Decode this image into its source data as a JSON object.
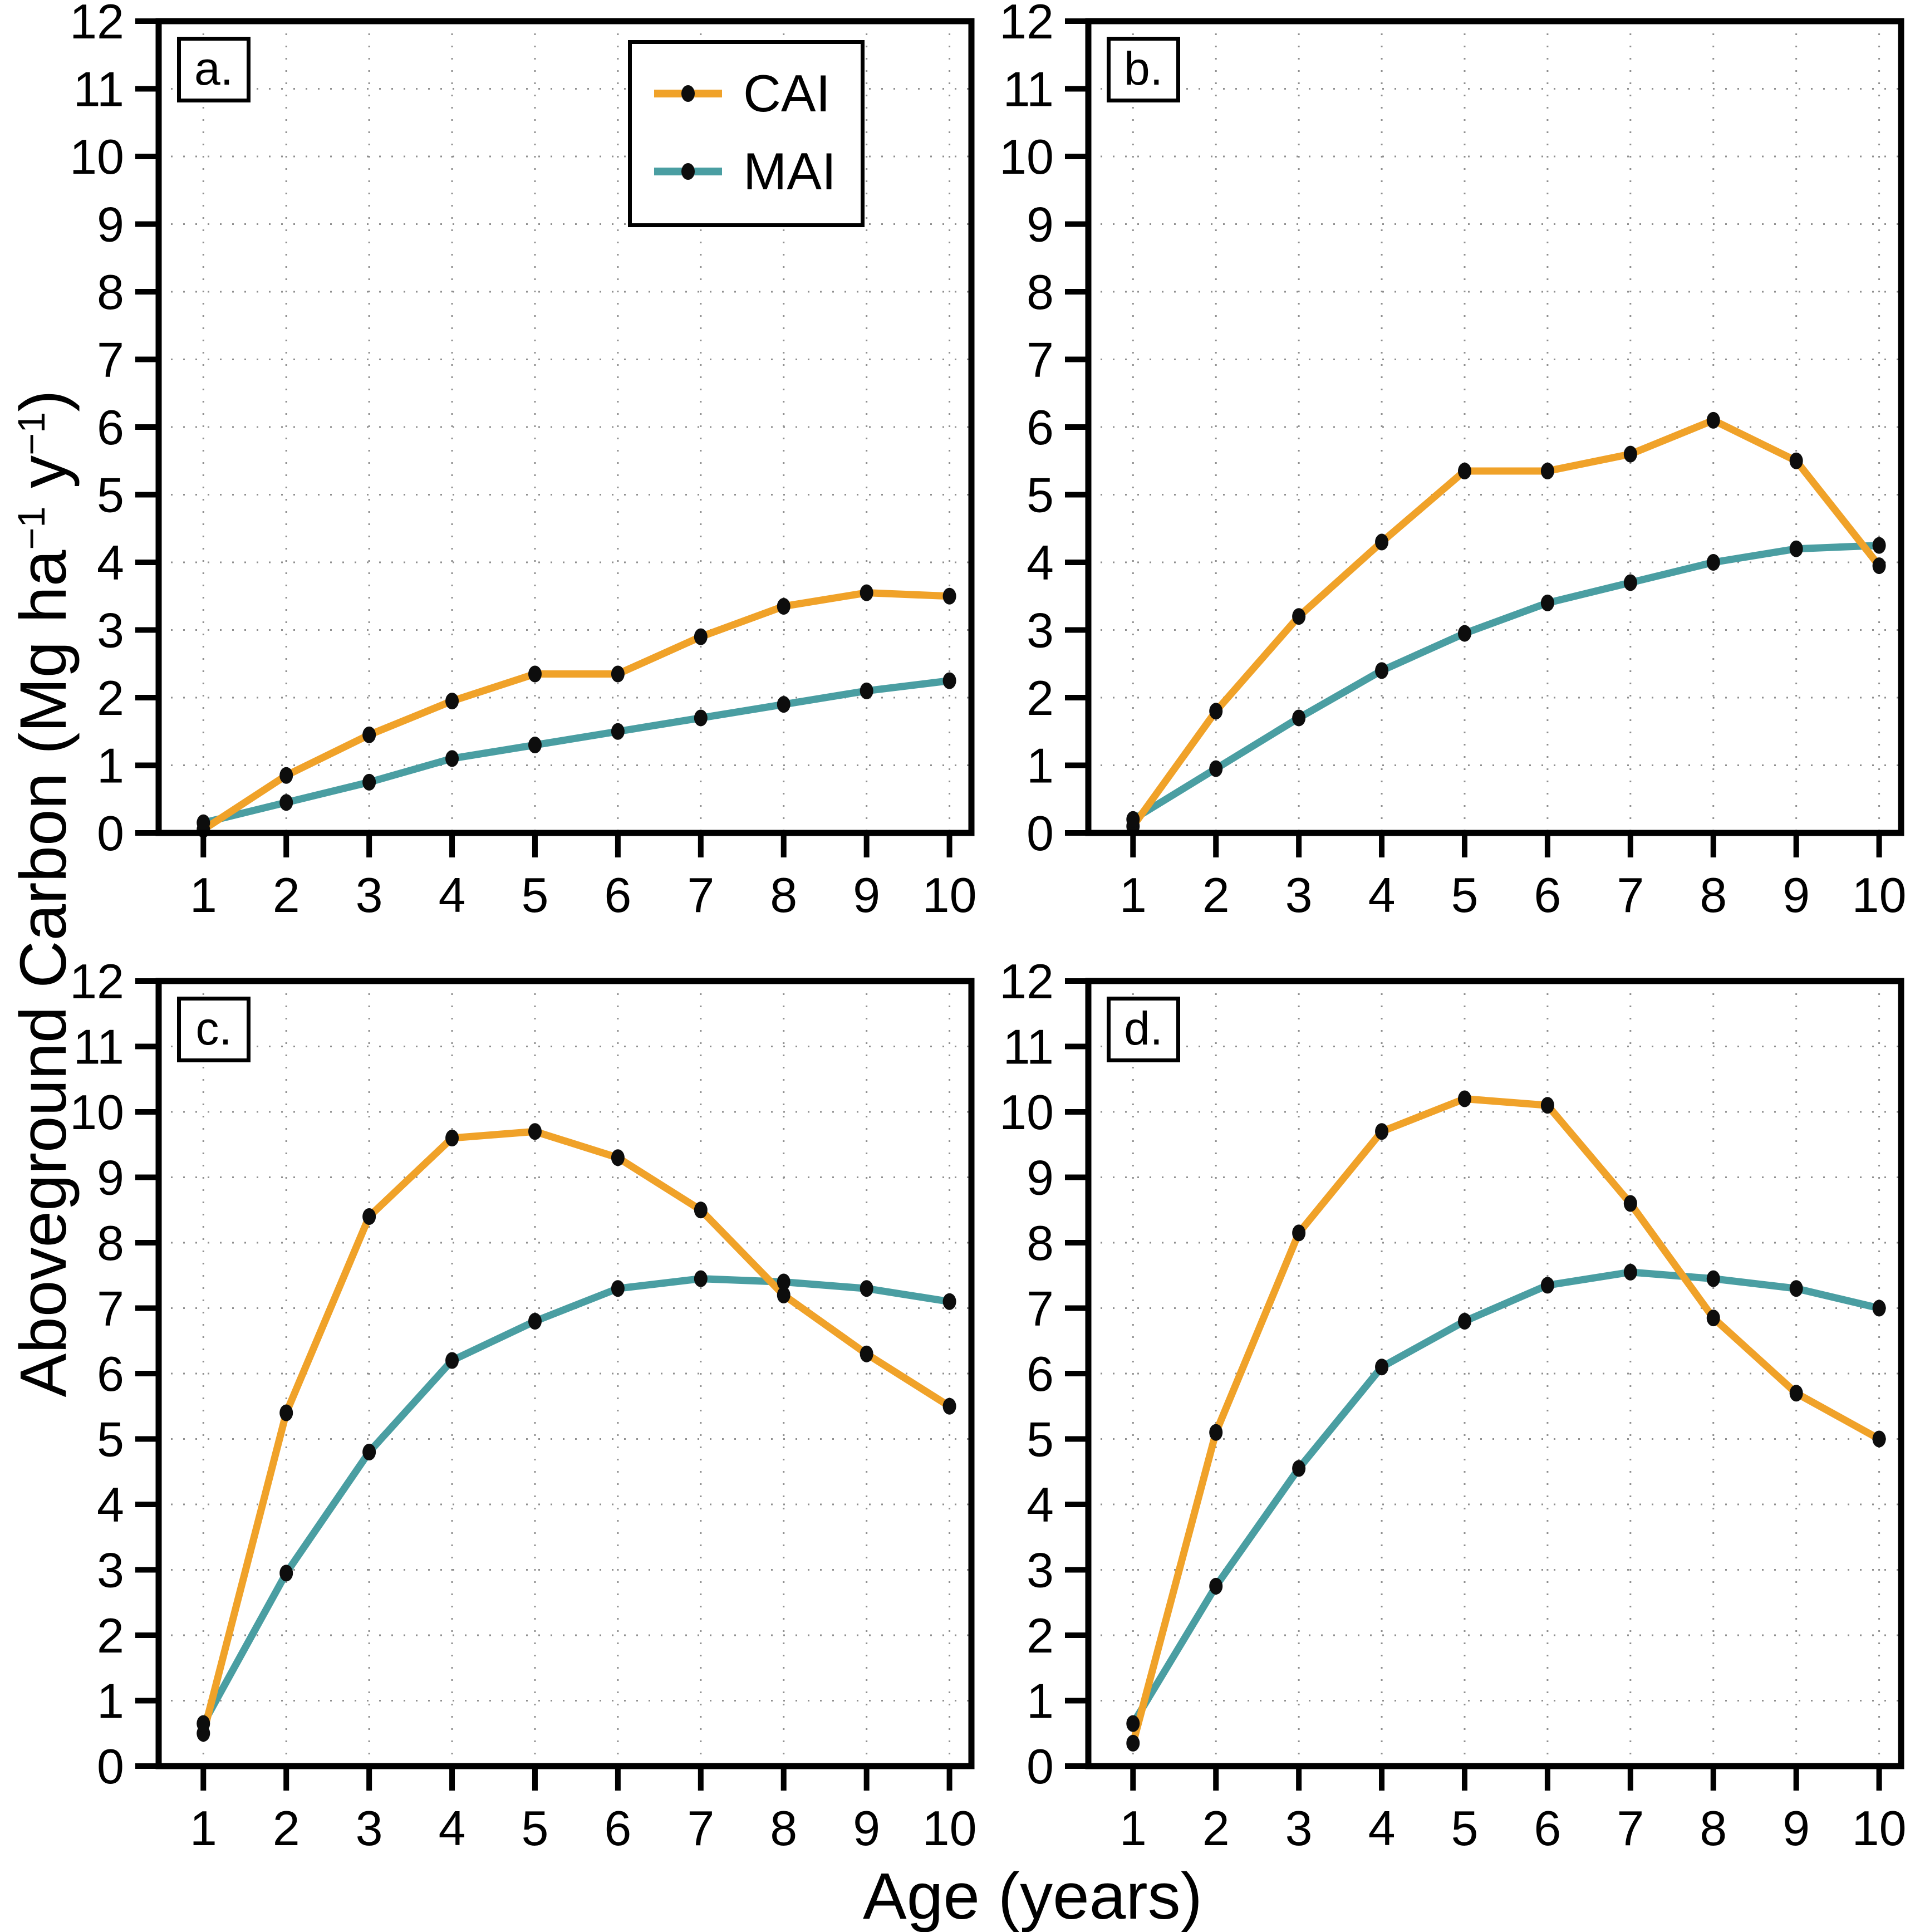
{
  "figure": {
    "xlabel": "Age (years)",
    "ylabel_text": "Aboveground Carbon (Mg ha−1 y−1)",
    "ylabel_parts": [
      {
        "t": "Aboveground Carbon (Mg ha"
      },
      {
        "t": "−1",
        "sup": true
      },
      {
        "t": " y",
        "sup": false
      },
      {
        "t": "−1",
        "sup": true
      },
      {
        "t": ")"
      }
    ],
    "background": "#ffffff",
    "axis_color": "#000000",
    "grid_color": "#8f8f8f",
    "marker_color": "#0d0d0d"
  },
  "legend": {
    "items": [
      {
        "label": "CAI",
        "color": "#F0A229"
      },
      {
        "label": "MAI",
        "color": "#4A9EA2"
      }
    ]
  },
  "chart_data": [
    {
      "panel": "a.",
      "type": "line",
      "x": [
        1,
        2,
        3,
        4,
        5,
        6,
        7,
        8,
        9,
        10
      ],
      "series": [
        {
          "name": "CAI",
          "color": "#F0A229",
          "values": [
            0.05,
            0.85,
            1.45,
            1.95,
            2.35,
            2.35,
            2.9,
            3.35,
            3.55,
            3.5
          ]
        },
        {
          "name": "MAI",
          "color": "#4A9EA2",
          "values": [
            0.15,
            0.45,
            0.75,
            1.1,
            1.3,
            1.5,
            1.7,
            1.9,
            2.1,
            2.25
          ]
        }
      ],
      "ylim": [
        0,
        12
      ],
      "ytick_step": 1,
      "grid": true,
      "has_legend": true
    },
    {
      "panel": "b.",
      "type": "line",
      "x": [
        1,
        2,
        3,
        4,
        5,
        6,
        7,
        8,
        9,
        10
      ],
      "series": [
        {
          "name": "CAI",
          "color": "#F0A229",
          "values": [
            0.1,
            1.8,
            3.2,
            4.3,
            5.35,
            5.35,
            5.6,
            6.1,
            5.5,
            3.95
          ]
        },
        {
          "name": "MAI",
          "color": "#4A9EA2",
          "values": [
            0.2,
            0.95,
            1.7,
            2.4,
            2.95,
            3.4,
            3.7,
            4.0,
            4.2,
            4.25
          ]
        }
      ],
      "ylim": [
        0,
        12
      ],
      "ytick_step": 1,
      "grid": true,
      "has_legend": false
    },
    {
      "panel": "c.",
      "type": "line",
      "x": [
        1,
        2,
        3,
        4,
        5,
        6,
        7,
        8,
        9,
        10
      ],
      "series": [
        {
          "name": "CAI",
          "color": "#F0A229",
          "values": [
            0.5,
            5.4,
            8.4,
            9.6,
            9.7,
            9.3,
            8.5,
            7.2,
            6.3,
            5.5
          ]
        },
        {
          "name": "MAI",
          "color": "#4A9EA2",
          "values": [
            0.65,
            2.95,
            4.8,
            6.2,
            6.8,
            7.3,
            7.45,
            7.4,
            7.3,
            7.1
          ]
        }
      ],
      "ylim": [
        0,
        12
      ],
      "ytick_step": 1,
      "grid": true,
      "has_legend": false
    },
    {
      "panel": "d.",
      "type": "line",
      "x": [
        1,
        2,
        3,
        4,
        5,
        6,
        7,
        8,
        9,
        10
      ],
      "series": [
        {
          "name": "CAI",
          "color": "#F0A229",
          "values": [
            0.35,
            5.1,
            8.15,
            9.7,
            10.2,
            10.1,
            8.6,
            6.85,
            5.7,
            5.0
          ]
        },
        {
          "name": "MAI",
          "color": "#4A9EA2",
          "values": [
            0.65,
            2.75,
            4.55,
            6.1,
            6.8,
            7.35,
            7.55,
            7.45,
            7.3,
            7.0
          ]
        }
      ],
      "ylim": [
        0,
        12
      ],
      "ytick_step": 1,
      "grid": true,
      "has_legend": false
    }
  ]
}
